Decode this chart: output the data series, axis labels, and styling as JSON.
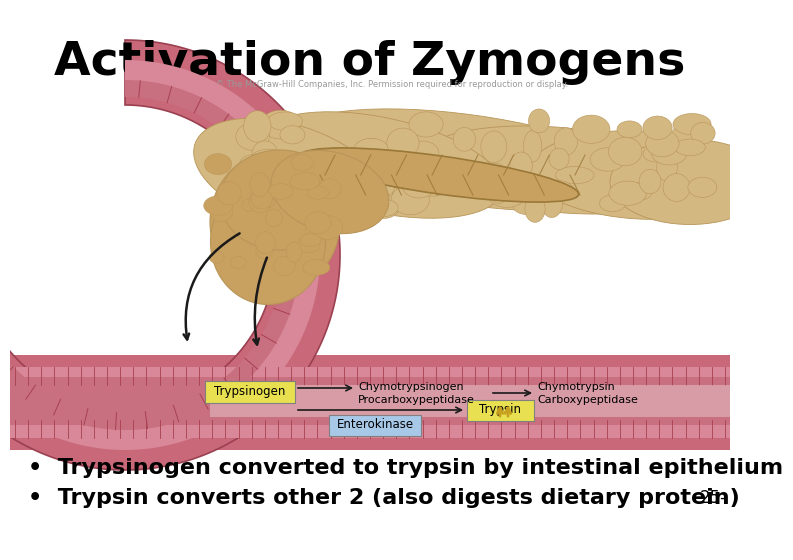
{
  "title": "Activation of Zymogens",
  "title_fontsize": 34,
  "title_fontweight": "bold",
  "title_color": "#000000",
  "background_color": "#ffffff",
  "bullet1": "Trypsinogen converted to trypsin by intestinal epithelium",
  "bullet2": "Trypsin converts other 2 (also digests dietary protein)",
  "bullet_fontsize": 16,
  "bullet_fontweight": "bold",
  "bullet_color": "#000000",
  "page_num": "25-",
  "page_num_fontsize": 12,
  "copyright_text": "Copyright © The McGraw-Hill Companies, Inc. Permission required for reproduction or display.",
  "copyright_fontsize": 6,
  "intestine_outer": "#c96878",
  "intestine_mid": "#d4808e",
  "intestine_inner": "#b85060",
  "intestine_fold": "#a84050",
  "pancreas_main": "#d4b882",
  "pancreas_edge": "#b89558",
  "pancreas_duct": "#c8a060",
  "pancreas_duct_edge": "#9a7838",
  "label_yellow": "#e8e050",
  "label_blue": "#a8c8e8",
  "label_edge": "#808080",
  "arrow_color": "#1a1a1a",
  "arrow_yellow": "#c8a020"
}
